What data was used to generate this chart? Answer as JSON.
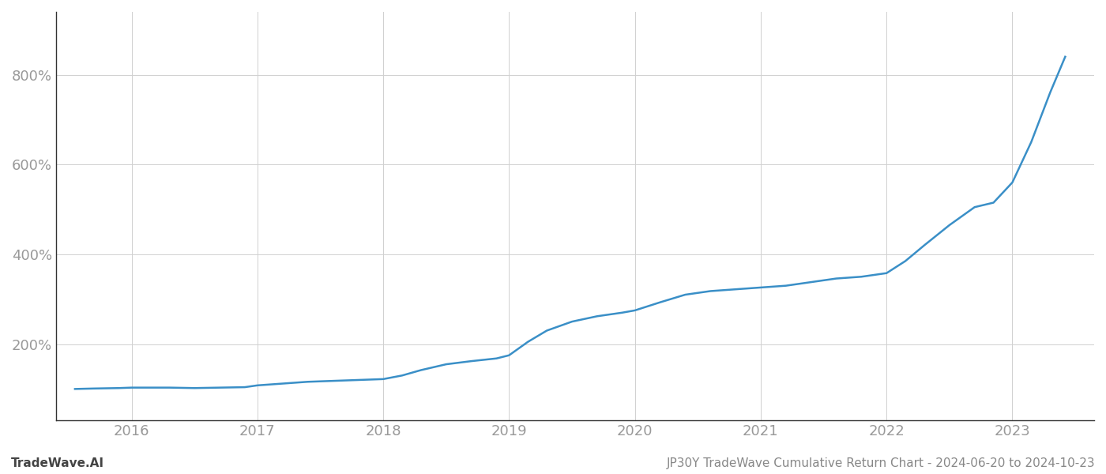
{
  "title_left": "TradeWave.AI",
  "title_right": "JP30Y TradeWave Cumulative Return Chart - 2024-06-20 to 2024-10-23",
  "line_color": "#3a8fc7",
  "background_color": "#ffffff",
  "grid_color": "#d0d0d0",
  "x_tick_labels": [
    "2016",
    "2017",
    "2018",
    "2019",
    "2020",
    "2021",
    "2022",
    "2023"
  ],
  "y_tick_labels": [
    "200%",
    "400%",
    "600%",
    "800%"
  ],
  "y_ticks": [
    200,
    400,
    600,
    800
  ],
  "ylim": [
    30,
    940
  ],
  "x_values": [
    2015.55,
    2015.7,
    2015.9,
    2016.0,
    2016.15,
    2016.3,
    2016.5,
    2016.7,
    2016.9,
    2017.0,
    2017.2,
    2017.4,
    2017.6,
    2017.8,
    2018.0,
    2018.15,
    2018.3,
    2018.5,
    2018.7,
    2018.9,
    2019.0,
    2019.15,
    2019.3,
    2019.5,
    2019.7,
    2019.9,
    2020.0,
    2020.2,
    2020.4,
    2020.6,
    2020.8,
    2021.0,
    2021.2,
    2021.4,
    2021.6,
    2021.8,
    2022.0,
    2022.15,
    2022.3,
    2022.5,
    2022.7,
    2022.85,
    2023.0,
    2023.15,
    2023.3,
    2023.42
  ],
  "y_values": [
    100,
    101,
    102,
    103,
    103,
    103,
    102,
    103,
    104,
    108,
    112,
    116,
    118,
    120,
    122,
    130,
    142,
    155,
    162,
    168,
    175,
    205,
    230,
    250,
    262,
    270,
    275,
    293,
    310,
    318,
    322,
    326,
    330,
    338,
    346,
    350,
    358,
    385,
    420,
    465,
    505,
    515,
    560,
    650,
    760,
    840
  ],
  "xlim": [
    2015.4,
    2023.65
  ],
  "footer_fontsize": 11,
  "tick_fontsize": 13,
  "tick_color": "#999999",
  "spine_color": "#333333"
}
